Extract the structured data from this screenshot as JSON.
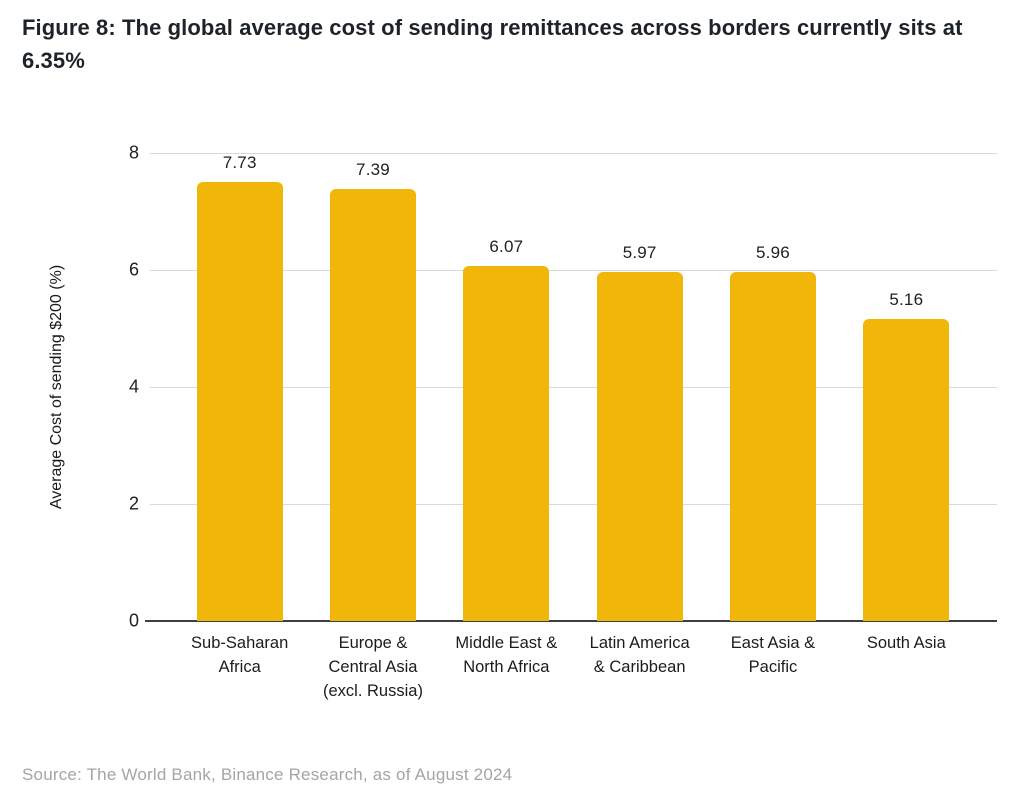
{
  "page": {
    "title": "Figure 8: The global average cost of sending remittances across borders currently sits at 6.35%",
    "source": "Source: The World Bank, Binance Research, as of August 2024"
  },
  "colors": {
    "bar": "#F0B60A",
    "gridline": "#D9D9D9",
    "baseline": "#3F3F3F",
    "title_text": "#1E2329",
    "source_text": "#A7A4A1"
  },
  "chart_data": {
    "type": "bar",
    "title": "Figure 8: The global average cost of sending remittances across borders currently sits at 6.35%",
    "categories": [
      "Sub-Saharan Africa",
      "Europe & Central Asia (excl. Russia)",
      "Middle East & North Africa",
      "Latin America & Caribbean",
      "East Asia & Pacific",
      "South Asia"
    ],
    "category_lines": [
      "Sub-Saharan\nAfrica",
      "Europe &\nCentral Asia\n(excl. Russia)",
      "Middle East &\nNorth Africa",
      "Latin America\n& Caribbean",
      "East Asia &\nPacific",
      "South Asia"
    ],
    "values": [
      7.73,
      7.39,
      6.07,
      5.97,
      5.96,
      5.16
    ],
    "value_labels": [
      "7.73",
      "7.39",
      "6.07",
      "5.97",
      "5.96",
      "5.16"
    ],
    "xlabel": "",
    "ylabel": "Average Cost of sending $200 (%)",
    "yticks": [
      0,
      2,
      4,
      6,
      8
    ],
    "ylim": [
      0,
      8
    ],
    "grid": "horizontal",
    "legend": "none"
  }
}
